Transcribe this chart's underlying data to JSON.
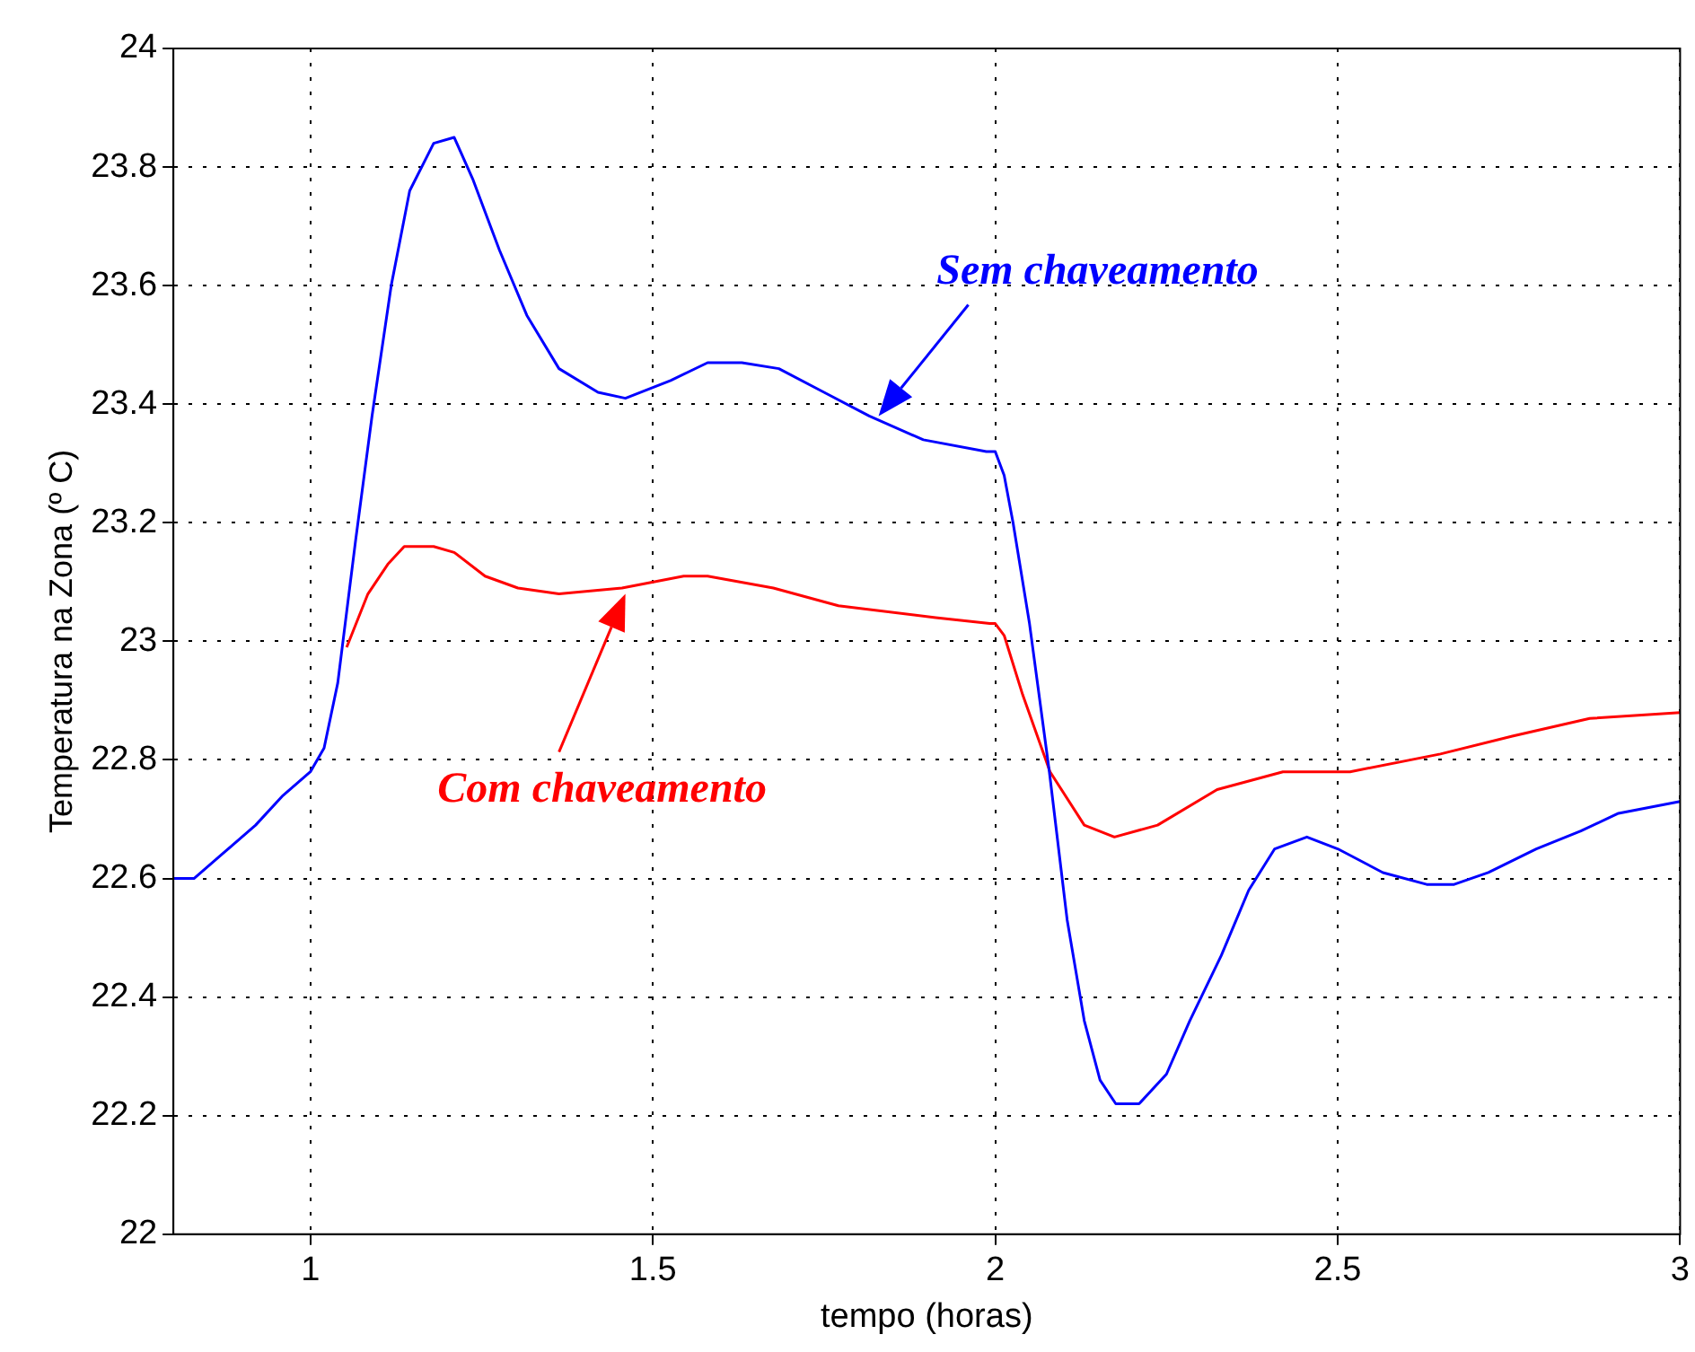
{
  "chart_data": {
    "type": "line",
    "xlabel": "tempo (horas)",
    "ylabel": "Temperatura na Zona (º C)",
    "xlim": [
      0.8,
      3
    ],
    "xticks": [
      1,
      1.5,
      2,
      2.5,
      3
    ],
    "ylim": [
      22,
      24
    ],
    "yticks": [
      22,
      22.2,
      22.4,
      22.6,
      22.8,
      23,
      23.2,
      23.4,
      23.6,
      23.8,
      24
    ],
    "grid": true,
    "legend": false,
    "marker": "none",
    "line_style": "solid",
    "series": [
      {
        "color": "#0000ff",
        "x": [
          0.8,
          0.83,
          0.87,
          0.92,
          0.96,
          1.0,
          1.02,
          1.04,
          1.066,
          1.09,
          1.118,
          1.145,
          1.18,
          1.21,
          1.237,
          1.276,
          1.316,
          1.363,
          1.42,
          1.46,
          1.526,
          1.58,
          1.63,
          1.684,
          1.75,
          1.816,
          1.895,
          1.987,
          2.0,
          2.013,
          2.026,
          2.05,
          2.079,
          2.105,
          2.13,
          2.153,
          2.176,
          2.21,
          2.25,
          2.284,
          2.33,
          2.37,
          2.408,
          2.455,
          2.5,
          2.566,
          2.63,
          2.67,
          2.72,
          2.79,
          2.855,
          2.91,
          3.0
        ],
        "values": [
          22.6,
          22.6,
          22.64,
          22.69,
          22.74,
          22.78,
          22.82,
          22.93,
          23.17,
          23.38,
          23.6,
          23.76,
          23.84,
          23.85,
          23.78,
          23.66,
          23.55,
          23.46,
          23.42,
          23.41,
          23.44,
          23.47,
          23.47,
          23.46,
          23.42,
          23.38,
          23.34,
          23.32,
          23.32,
          23.28,
          23.2,
          23.03,
          22.78,
          22.53,
          22.36,
          22.26,
          22.22,
          22.22,
          22.27,
          22.36,
          22.47,
          22.58,
          22.65,
          22.67,
          22.65,
          22.61,
          22.59,
          22.59,
          22.61,
          22.65,
          22.68,
          22.71,
          22.73
        ]
      },
      {
        "color": "#ff0000",
        "x": [
          1.053,
          1.084,
          1.113,
          1.137,
          1.18,
          1.21,
          1.255,
          1.303,
          1.363,
          1.455,
          1.545,
          1.58,
          1.676,
          1.771,
          1.913,
          1.992,
          2.0,
          2.013,
          2.04,
          2.08,
          2.13,
          2.174,
          2.237,
          2.324,
          2.42,
          2.518,
          2.65,
          2.755,
          2.868,
          3.0
        ],
        "values": [
          22.99,
          23.08,
          23.13,
          23.16,
          23.16,
          23.15,
          23.11,
          23.09,
          23.08,
          23.09,
          23.11,
          23.11,
          23.09,
          23.06,
          23.04,
          23.03,
          23.03,
          23.01,
          22.91,
          22.78,
          22.69,
          22.67,
          22.69,
          22.75,
          22.78,
          22.78,
          22.81,
          22.84,
          22.87,
          22.88
        ]
      }
    ],
    "annotations": [
      "Sem chaveamento",
      "Com chaveamento"
    ]
  }
}
